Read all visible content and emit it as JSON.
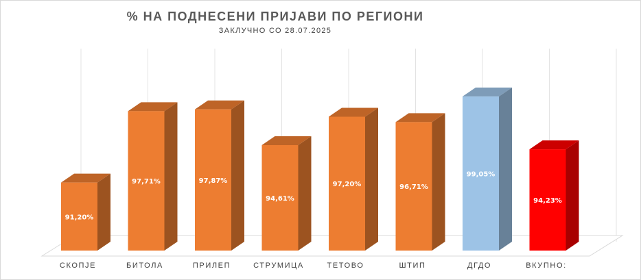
{
  "chart_data": {
    "type": "bar",
    "title": "% НА ПОДНЕСЕНИ ПРИЈАВИ ПО РЕГИОНИ",
    "subtitle": "ЗАКЛУЧНО СО 28.07.2025",
    "categories": [
      "СКОПЈЕ",
      "БИТОЛА",
      "ПРИЛЕП",
      "СТРУМИЦА",
      "ТЕТОВО",
      "ШТИП",
      "ДГДО",
      "ВКУПНО:"
    ],
    "values": [
      91.2,
      97.71,
      97.87,
      94.61,
      97.2,
      96.71,
      99.05,
      94.23
    ],
    "value_labels": [
      "91,20%",
      "97,71%",
      "97,87%",
      "94,61%",
      "97,20%",
      "96,71%",
      "99,05%",
      "94,23%"
    ],
    "colors": [
      "#ed7d31",
      "#ed7d31",
      "#ed7d31",
      "#ed7d31",
      "#ed7d31",
      "#ed7d31",
      "#9dc3e6",
      "#ff0000"
    ],
    "grid": true,
    "legend": "none",
    "style": "3d-column"
  }
}
